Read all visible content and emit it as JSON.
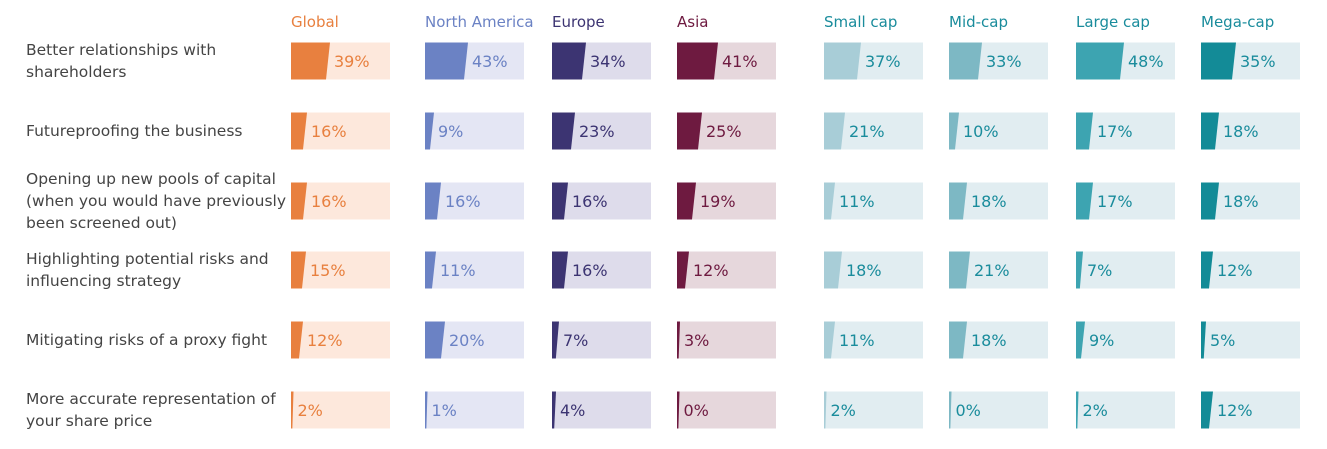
{
  "chart_data": {
    "type": "bar",
    "groups": [
      {
        "name": "Global",
        "color": "#E8803F",
        "bg": "#FDE8DC",
        "text": "#E8803F"
      },
      {
        "name": "North America",
        "color": "#6B82C4",
        "bg": "#E4E6F4",
        "text": "#6B82C4"
      },
      {
        "name": "Europe",
        "color": "#3C3472",
        "bg": "#DEDCEB",
        "text": "#3C3472"
      },
      {
        "name": "Asia",
        "color": "#6E1A40",
        "bg": "#E6D7DC",
        "text": "#6E1A40"
      },
      {
        "name": "Small cap",
        "color": "#A8CDD7",
        "bg": "#E1EDF1",
        "text": "#1A8C9C"
      },
      {
        "name": "Mid-cap",
        "color": "#7DB8C4",
        "bg": "#E1EDF1",
        "text": "#1A8C9C"
      },
      {
        "name": "Large cap",
        "color": "#3DA4B1",
        "bg": "#E1EDF1",
        "text": "#1A8C9C"
      },
      {
        "name": "Mega-cap",
        "color": "#138B97",
        "bg": "#E1EDF1",
        "text": "#1A8C9C"
      }
    ],
    "categories": [
      [
        "Better relationships with",
        "shareholders"
      ],
      [
        "Futureproofing the business"
      ],
      [
        "Opening up new pools of capital",
        "(when you would have previously",
        "been screened out)"
      ],
      [
        "Highlighting potential risks and",
        "influencing strategy"
      ],
      [
        "Mitigating risks of a proxy fight"
      ],
      [
        "More accurate representation of",
        "your share price"
      ]
    ],
    "values": [
      [
        39,
        43,
        34,
        41,
        37,
        33,
        48,
        35
      ],
      [
        16,
        9,
        23,
        25,
        21,
        10,
        17,
        18
      ],
      [
        16,
        16,
        16,
        19,
        11,
        18,
        17,
        18
      ],
      [
        15,
        11,
        16,
        12,
        18,
        21,
        7,
        12
      ],
      [
        12,
        20,
        7,
        3,
        11,
        18,
        9,
        5
      ],
      [
        2,
        1,
        4,
        0,
        2,
        0,
        2,
        12
      ]
    ],
    "unit": "%"
  }
}
